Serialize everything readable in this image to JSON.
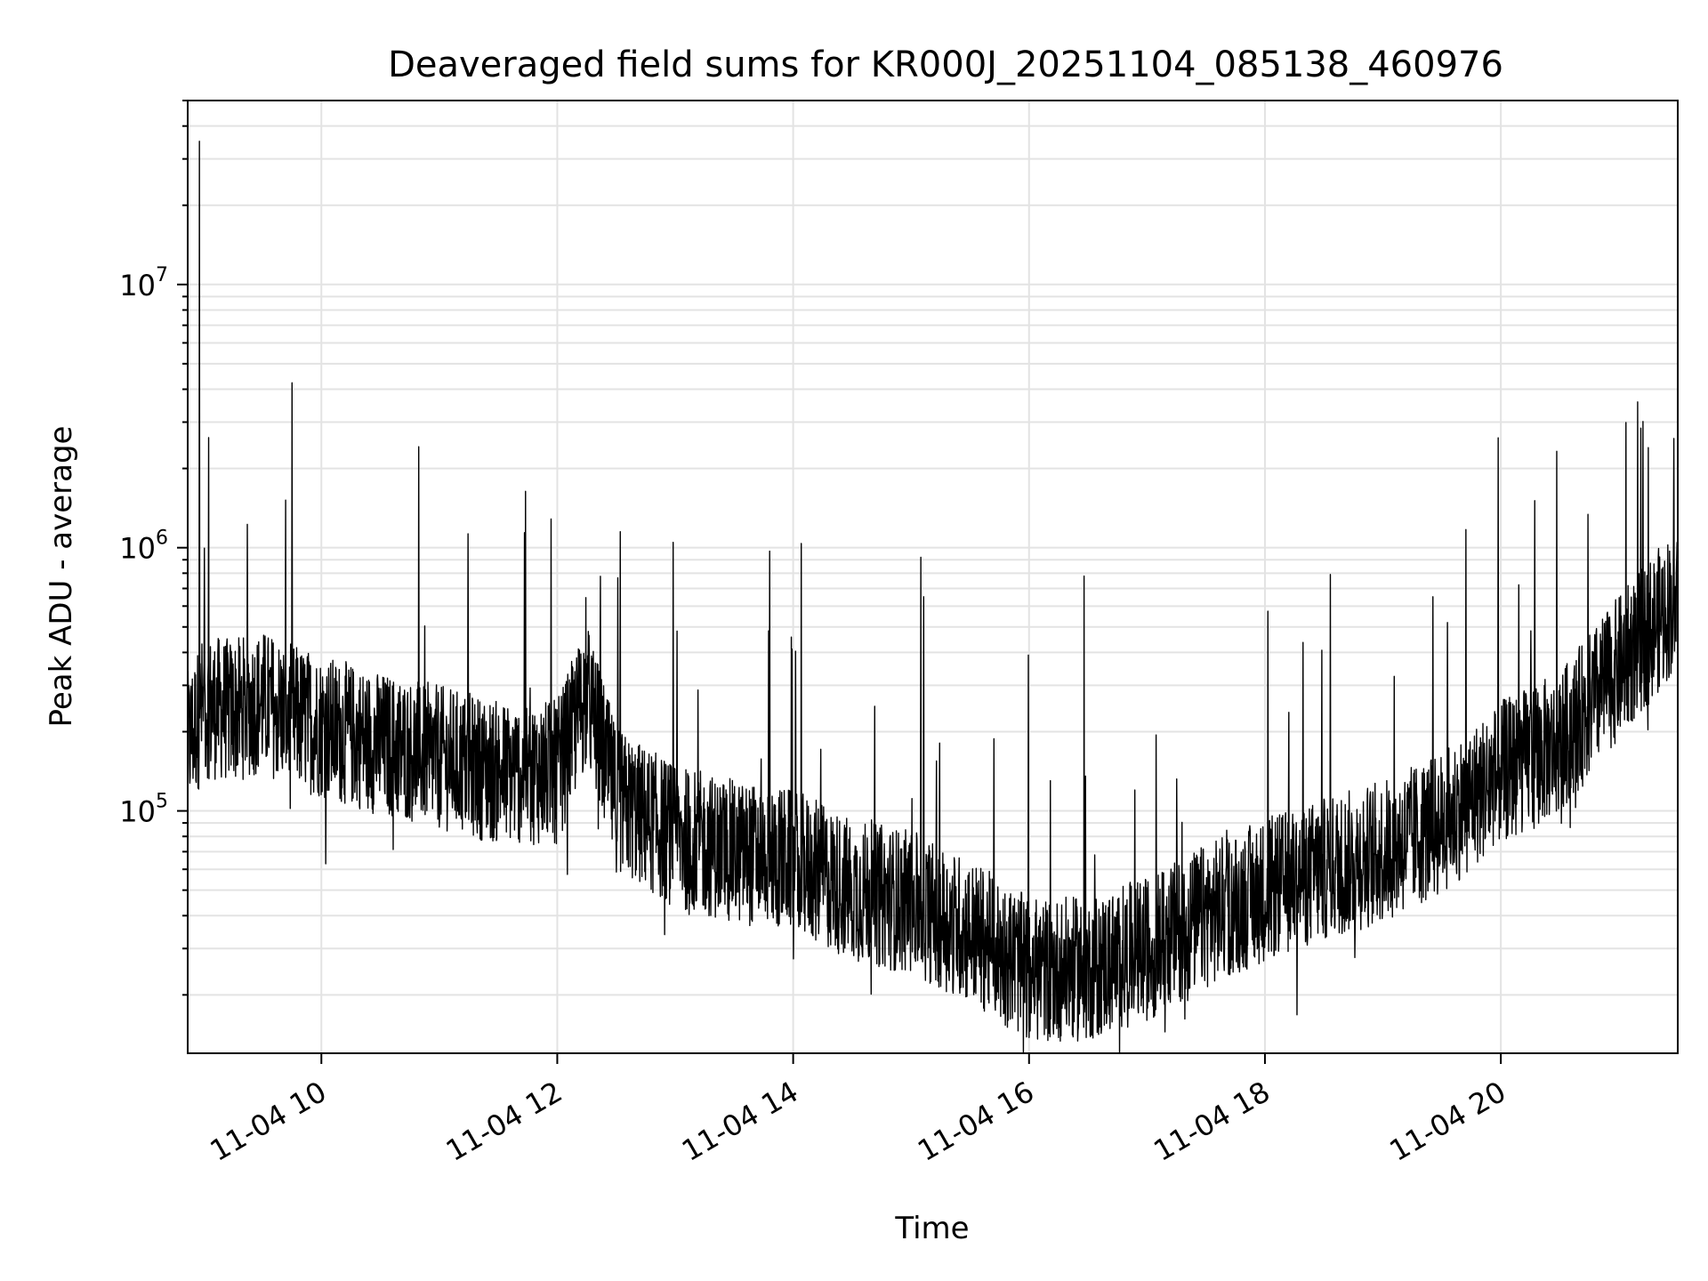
{
  "chart_data": {
    "type": "line",
    "title": "Deaveraged field sums for KR000J_20251104_085138_460976",
    "xlabel": "Time",
    "ylabel": "Peak ADU - average",
    "x_range": [
      "2025-11-04 08:52",
      "2025-11-04 21:30"
    ],
    "y_scale": "log",
    "ylim": [
      12000,
      50000000
    ],
    "grid": true,
    "line_color": "#000000",
    "x_tick_labels": [
      "11-04 10",
      "11-04 12",
      "11-04 14",
      "11-04 16",
      "11-04 18",
      "11-04 20"
    ],
    "y_tick_labels": [
      {
        "base": "10",
        "exp": "5"
      },
      {
        "base": "10",
        "exp": "6"
      },
      {
        "base": "10",
        "exp": "7"
      }
    ],
    "series": [
      {
        "x": [
          "2025-11-04 08:52",
          "2025-11-04 09:00",
          "2025-11-04 09:15",
          "2025-11-04 09:30",
          "2025-11-04 09:45",
          "2025-11-04 10:00",
          "2025-11-04 10:30",
          "2025-11-04 11:00",
          "2025-11-04 11:30",
          "2025-11-04 12:00",
          "2025-11-04 12:15",
          "2025-11-04 12:30",
          "2025-11-04 13:00",
          "2025-11-04 13:30",
          "2025-11-04 14:00",
          "2025-11-04 14:30",
          "2025-11-04 15:00",
          "2025-11-04 15:30",
          "2025-11-04 16:00",
          "2025-11-04 16:30",
          "2025-11-04 17:00",
          "2025-11-04 17:30",
          "2025-11-04 18:00",
          "2025-11-04 18:30",
          "2025-11-04 19:00",
          "2025-11-04 19:30",
          "2025-11-04 20:00",
          "2025-11-04 20:30",
          "2025-11-04 21:00",
          "2025-11-04 21:30"
        ],
        "values": [
          180000,
          250000,
          240000,
          260000,
          230000,
          210000,
          180000,
          160000,
          140000,
          140000,
          280000,
          110000,
          80000,
          70000,
          65000,
          50000,
          45000,
          35000,
          25000,
          25000,
          30000,
          40000,
          50000,
          60000,
          70000,
          90000,
          140000,
          180000,
          350000,
          650000
        ]
      }
    ],
    "spikes": [
      {
        "x": "2025-11-04 08:58",
        "value": 35000000
      },
      {
        "x": "2025-11-04 12:32",
        "value": 1150000
      },
      {
        "x": "2025-11-04 13:48",
        "value": 970000
      },
      {
        "x": "2025-11-04 15:05",
        "value": 920000
      },
      {
        "x": "2025-11-04 16:28",
        "value": 780000
      },
      {
        "x": "2025-11-04 21:15",
        "value": 2400000
      },
      {
        "x": "2025-11-04 21:28",
        "value": 2600000
      }
    ]
  }
}
